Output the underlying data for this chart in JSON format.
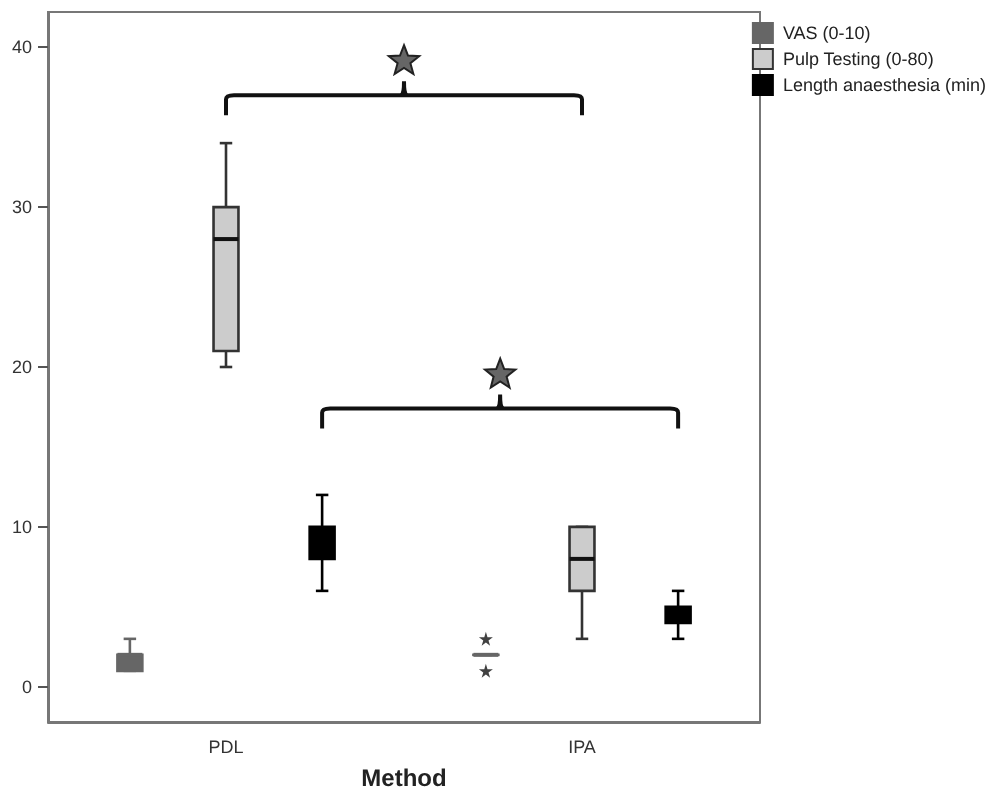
{
  "chart_data": {
    "type": "box",
    "xlabel": "Method",
    "categories": [
      "PDL",
      "IPA"
    ],
    "series": [
      {
        "name": "VAS (0-10)",
        "color": "#666666",
        "boxes": [
          {
            "low": 1,
            "q1": 1,
            "median": 2,
            "q3": 2,
            "high": 3
          },
          {
            "low": 2,
            "q1": 2,
            "median": 2,
            "q3": 2,
            "high": 2,
            "outliers": [
              3,
              1
            ]
          }
        ]
      },
      {
        "name": "Pulp Testing (0-80)",
        "color": "#cccccc",
        "boxes": [
          {
            "low": 20,
            "q1": 21,
            "median": 28,
            "q3": 30,
            "high": 34
          },
          {
            "low": 3,
            "q1": 6,
            "median": 8,
            "q3": 10,
            "high": 10
          }
        ]
      },
      {
        "name": "Length anaesthesia (min)",
        "color": "#000000",
        "boxes": [
          {
            "low": 6,
            "q1": 8,
            "median": 9,
            "q3": 10,
            "high": 12
          },
          {
            "low": 3,
            "q1": 4,
            "median": 4.5,
            "q3": 5,
            "high": 6
          }
        ]
      }
    ],
    "ylim": [
      -2.2,
      42.2
    ],
    "yticks": [
      0,
      10,
      20,
      30,
      40
    ],
    "grid": false,
    "legend": "top right",
    "marker": "star"
  }
}
